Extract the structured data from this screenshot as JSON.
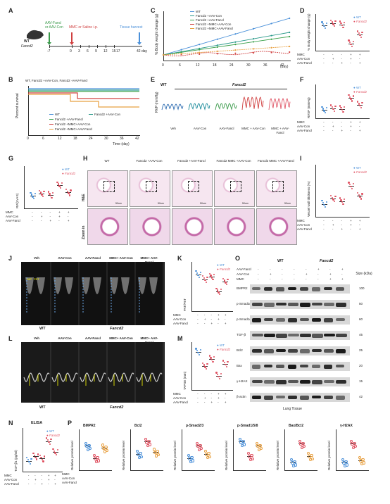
{
  "panels": {
    "A": "A",
    "B": "B",
    "C": "C",
    "D": "D",
    "E": "E",
    "F": "F",
    "G": "G",
    "H": "H",
    "I": "I",
    "J": "J",
    "K": "K",
    "L": "L",
    "M": "M",
    "N": "N",
    "O": "O",
    "P": "P"
  },
  "panelA": {
    "mouse": "WT",
    "mouse2": "Fancd2",
    "inj": "AAV-Fancl",
    "inj2": "or AAV-Con",
    "mmc": "MMC or Saline i.p.",
    "harvest": "Tissue harvest",
    "day": "42 day",
    "ticks": [
      "-7",
      "0",
      "3",
      "6",
      "9",
      "12",
      "15",
      "17"
    ]
  },
  "panelB": {
    "title": "WT, Fancd2 +AAV-Con, Fancd2 +AAV-Fancl",
    "ylabel": "Percent survival",
    "xlabel": "Time (day)",
    "legend": [
      "WT",
      "Fancd2 +AAV-Con",
      "Fancd2 +AAV-Fancl",
      "Fancd2 +MMC+AAV-Con",
      "Fancd2 +MMC+AAV-Fancl"
    ],
    "xticks": [
      "0",
      "6",
      "12",
      "18",
      "24",
      "30",
      "36",
      "42"
    ]
  },
  "panelC": {
    "ylabel": "% Body weight change (g)",
    "legend": [
      "WT",
      "Fancd2 +AAV-Con",
      "Fancd2 +AAV-Fancl",
      "Fancd2 +MMC+AAV-Con",
      "Fancd2 +MMC+AAV-Fancl"
    ],
    "xticks": [
      "0",
      "6",
      "12",
      "18",
      "24",
      "30",
      "36",
      "42"
    ],
    "xlabel": "(day)"
  },
  "panelD": {
    "ylabel": "% Body weight change (g)",
    "legend": [
      "WT",
      "Fancd2"
    ],
    "rows": [
      "MMC",
      "AAV-Con",
      "AAV-Fancl"
    ]
  },
  "panelE": {
    "ylabel": "RVP (mmHg)",
    "groups": [
      "WT",
      "Fancd2"
    ],
    "labels": [
      "Veh",
      "AAV-Con",
      "AAV-Fancl",
      "MMC + AAV-Con",
      "MMC + AAV-Fancl"
    ]
  },
  "panelF": {
    "ylabel": "RVSP (mmHg)",
    "legend": [
      "WT",
      "Fancd2"
    ],
    "rows": [
      "MMC",
      "AAV-Con",
      "AAV-Fancl"
    ]
  },
  "panelG": {
    "ylabel": "RV/(LV+S)",
    "legend": [
      "WT",
      "Fancd2"
    ],
    "rows": [
      "MMC",
      "AAV-Con",
      "AAV-Fancl"
    ]
  },
  "panelH": {
    "cols": [
      "WT",
      "Fancd2 +AAV-Con",
      "Fancd2 +AAV-Fancl",
      "Fancd2 MMC +AAV-Con",
      "Fancd2 MMC +AAV-Fancl"
    ],
    "rows": [
      "H&E",
      "Zoom in"
    ],
    "scale": "50um"
  },
  "panelI": {
    "ylabel": "Vessel wall thickness (%)",
    "legend": [
      "WT",
      "Fancd2"
    ],
    "rows": [
      "MMC",
      "AAV-Con",
      "AAV-Fancl"
    ]
  },
  "panelJ": {
    "cols": [
      "Veh",
      "AAV-Con",
      "AAV-Fancl",
      "MMC+ AAV-Con",
      "MMC+ AAV-Fancl"
    ],
    "groups": [
      "WT",
      "Fancd2"
    ],
    "marks": [
      "PAT",
      "PET"
    ]
  },
  "panelK": {
    "ylabel": "PAT/PET",
    "legend": [
      "WT",
      "Fancd2"
    ],
    "rows": [
      "MMC",
      "AAV-Con",
      "AAV-Fancl"
    ]
  },
  "panelL": {
    "cols": [
      "Veh",
      "AAV-Con",
      "AAV-Fancl",
      "MMC+ AAV-Con",
      "MMC+ AAV-Fancl"
    ],
    "groups": [
      "WT",
      "Fancd2"
    ]
  },
  "panelM": {
    "ylabel": "TAPSE (mm)",
    "legend": [
      "WT",
      "Fancd2"
    ],
    "rows": [
      "MMC",
      "AAV-Con",
      "AAV-Fancl"
    ]
  },
  "panelN": {
    "title": "ELISA",
    "ylabel": "TGF-β1 (pg/ml)",
    "legend": [
      "WT",
      "Fancd2"
    ],
    "rows": [
      "MMC",
      "AAV-Con",
      "AAV-Fancl"
    ]
  },
  "panelO": {
    "header": [
      "WT",
      "Fancd2"
    ],
    "rows": [
      "AAV-Fancl",
      "AAV-Con",
      "MMC"
    ],
    "size": "Size (kDa)",
    "blots": [
      {
        "name": "BMPR2",
        "kda": "100"
      },
      {
        "name": "p-Smad2/3",
        "kda": "50"
      },
      {
        "name": "p-Smad1/5/8",
        "kda": "60"
      },
      {
        "name": "TGF-β",
        "kda": "45"
      },
      {
        "name": "Bcl2",
        "kda": "25"
      },
      {
        "name": "Bax",
        "kda": "20"
      },
      {
        "name": "γ-H2AX",
        "kda": "15"
      },
      {
        "name": "β-actin",
        "kda": "42"
      }
    ],
    "tissue": "Lung Tissue"
  },
  "panelP": {
    "titles": [
      "BMPR2",
      "Bcl2",
      "p-Smad2/3",
      "p-Smad1/5/8",
      "Bax/Bcl2",
      "γ-H2AX"
    ],
    "ylabel": "Relative protein level",
    "rows": [
      "MMC",
      "AAV-Con",
      "AAV-Fancl"
    ]
  },
  "colors": {
    "wt": "#4a90d9",
    "ko": "#e05060",
    "orange": "#e8a040",
    "teal": "#2a9a8a",
    "green": "#3aa04a",
    "red": "#d04040",
    "purple": "#9a4ac0"
  }
}
